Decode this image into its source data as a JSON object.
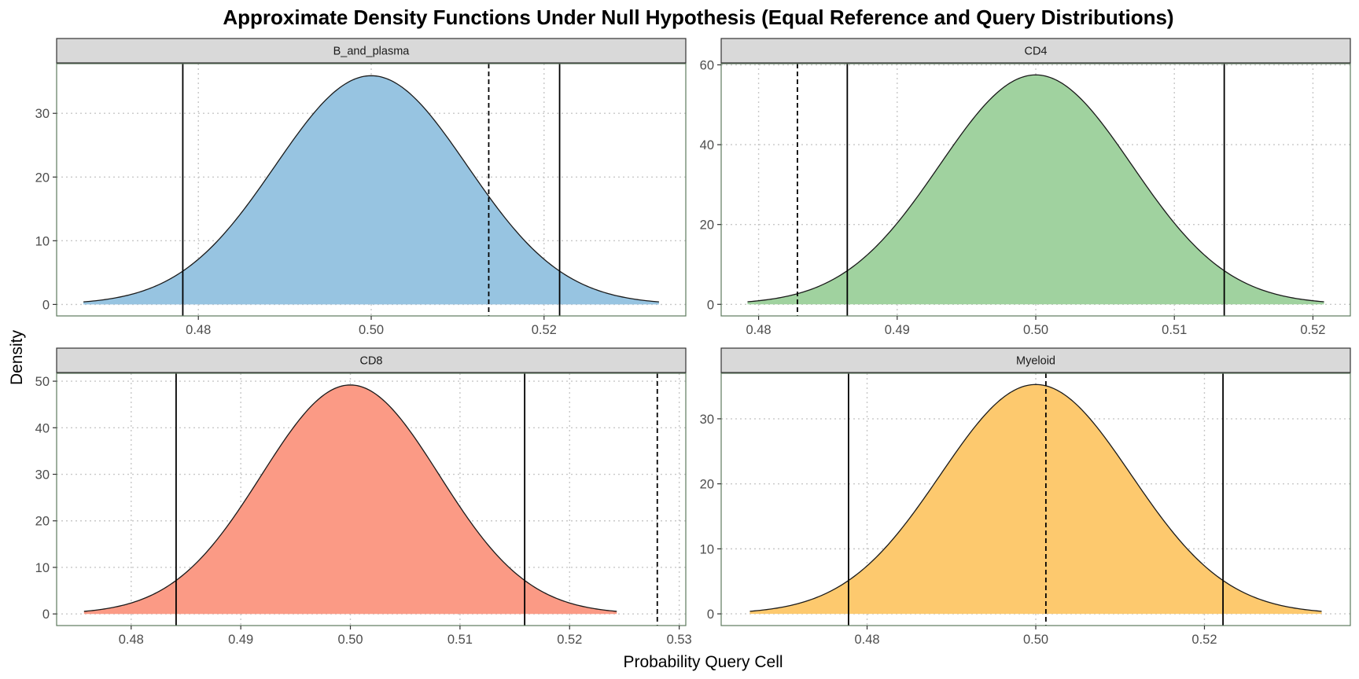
{
  "chart_data": {
    "type": "area",
    "title": "Approximate Density Functions Under Null Hypothesis (Equal Reference and Query Distributions)",
    "xlabel": "Probability Query Cell",
    "ylabel": "Density",
    "grid": true,
    "grid_style": "dotted",
    "facets": [
      {
        "name": "B_and_plasma",
        "fill_color": "#97C4E1",
        "mean": 0.5,
        "sd": 0.01111,
        "x_range": [
          0.4667,
          0.5333
        ],
        "xlim": [
          0.4636,
          0.5364
        ],
        "ylim": [
          -1.8,
          37.8
        ],
        "x_ticks": [
          0.48,
          0.5,
          0.52
        ],
        "x_tick_labels": [
          "0.48",
          "0.50",
          "0.52"
        ],
        "y_ticks": [
          0,
          10,
          20,
          30
        ],
        "y_tick_labels": [
          "0",
          "10",
          "20",
          "30"
        ],
        "solid_lines": [
          0.4782,
          0.5218
        ],
        "dashed_line": 0.5136
      },
      {
        "name": "CD4",
        "fill_color": "#A0D29F",
        "mean": 0.5,
        "sd": 0.00694,
        "x_range": [
          0.4792,
          0.5208
        ],
        "xlim": [
          0.4773,
          0.5227
        ],
        "ylim": [
          -2.9,
          60.3
        ],
        "x_ticks": [
          0.48,
          0.49,
          0.5,
          0.51,
          0.52
        ],
        "x_tick_labels": [
          "0.48",
          "0.49",
          "0.50",
          "0.51",
          "0.52"
        ],
        "y_ticks": [
          0,
          20,
          40,
          60
        ],
        "y_tick_labels": [
          "0",
          "20",
          "40",
          "60"
        ],
        "solid_lines": [
          0.4864,
          0.5136
        ],
        "dashed_line": 0.4828
      },
      {
        "name": "CD8",
        "fill_color": "#FB9A85",
        "mean": 0.5,
        "sd": 0.00811,
        "x_range": [
          0.4757,
          0.5243
        ],
        "xlim": [
          0.4732,
          0.5306
        ],
        "ylim": [
          -2.5,
          51.7
        ],
        "x_ticks": [
          0.48,
          0.49,
          0.5,
          0.51,
          0.52,
          0.53
        ],
        "x_tick_labels": [
          "0.48",
          "0.49",
          "0.50",
          "0.51",
          "0.52",
          "0.53"
        ],
        "y_ticks": [
          0,
          10,
          20,
          30,
          40,
          50
        ],
        "y_tick_labels": [
          "0",
          "10",
          "20",
          "30",
          "40",
          "50"
        ],
        "solid_lines": [
          0.4841,
          0.5159
        ],
        "dashed_line": 0.528
      },
      {
        "name": "Myeloid",
        "fill_color": "#FDC96E",
        "mean": 0.5,
        "sd": 0.01131,
        "x_range": [
          0.4661,
          0.5339
        ],
        "xlim": [
          0.4627,
          0.5373
        ],
        "ylim": [
          -1.8,
          37.0
        ],
        "x_ticks": [
          0.48,
          0.5,
          0.52
        ],
        "x_tick_labels": [
          "0.48",
          "0.50",
          "0.52"
        ],
        "y_ticks": [
          0,
          10,
          20,
          30
        ],
        "y_tick_labels": [
          "0",
          "10",
          "20",
          "30"
        ],
        "solid_lines": [
          0.4778,
          0.5222
        ],
        "dashed_line": 0.5012
      }
    ]
  }
}
